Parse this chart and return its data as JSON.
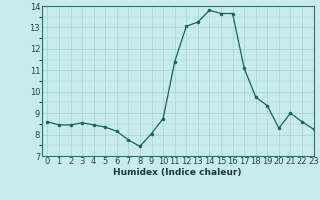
{
  "x": [
    0,
    1,
    2,
    3,
    4,
    5,
    6,
    7,
    8,
    9,
    10,
    11,
    12,
    13,
    14,
    15,
    16,
    17,
    18,
    19,
    20,
    21,
    22,
    23
  ],
  "y": [
    8.6,
    8.45,
    8.45,
    8.55,
    8.45,
    8.35,
    8.15,
    7.75,
    7.45,
    8.05,
    8.75,
    11.4,
    13.05,
    13.25,
    13.8,
    13.65,
    13.65,
    11.1,
    9.75,
    9.35,
    8.3,
    9.0,
    8.6,
    8.25
  ],
  "line_color": "#1a6060",
  "marker": "o",
  "marker_size": 2.0,
  "bg_color": "#c8ecec",
  "grid_color": "#a0d4d4",
  "xlabel": "Humidex (Indice chaleur)",
  "ylim": [
    7,
    14
  ],
  "xlim": [
    -0.5,
    23
  ],
  "yticks": [
    7,
    8,
    9,
    10,
    11,
    12,
    13,
    14
  ],
  "xticks": [
    0,
    1,
    2,
    3,
    4,
    5,
    6,
    7,
    8,
    9,
    10,
    11,
    12,
    13,
    14,
    15,
    16,
    17,
    18,
    19,
    20,
    21,
    22,
    23
  ],
  "label_fontsize": 6.5,
  "tick_fontsize": 6.0
}
